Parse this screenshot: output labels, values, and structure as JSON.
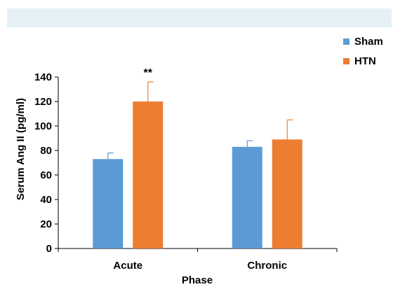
{
  "chart_data": {
    "type": "bar",
    "title": "",
    "xlabel": "Phase",
    "ylabel": "Serum Ang II (pg/ml)",
    "categories": [
      "Acute",
      "Chronic"
    ],
    "ylim": [
      0,
      140
    ],
    "yticks": [
      0,
      20,
      40,
      60,
      80,
      100,
      120,
      140
    ],
    "grid": false,
    "legend_position": "top-right",
    "series": [
      {
        "name": "Sham",
        "color": "#5b9bd5",
        "values": [
          73,
          83
        ],
        "errors": [
          5,
          5
        ]
      },
      {
        "name": "HTN",
        "color": "#ed7d31",
        "values": [
          120,
          89
        ],
        "errors": [
          16,
          16
        ]
      }
    ],
    "annotations": [
      {
        "text": "**",
        "category": "Acute",
        "series": "HTN"
      }
    ]
  }
}
